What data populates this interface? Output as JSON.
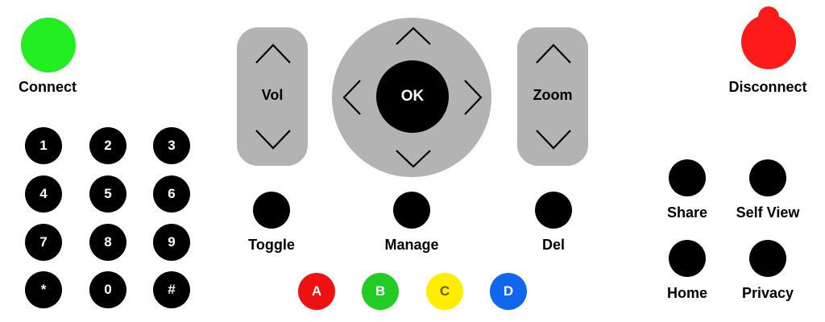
{
  "connect": {
    "label": "Connect",
    "color": "#22ee22"
  },
  "disconnect": {
    "label": "Disconnect",
    "color": "#ff1a1a"
  },
  "keypad": [
    "1",
    "2",
    "3",
    "4",
    "5",
    "6",
    "7",
    "8",
    "9",
    "*",
    "0",
    "#"
  ],
  "volume": {
    "label": "Vol"
  },
  "zoom": {
    "label": "Zoom"
  },
  "dpad": {
    "ok_label": "OK"
  },
  "actions": {
    "toggle": "Toggle",
    "manage": "Manage",
    "del": "Del"
  },
  "color_buttons": [
    {
      "label": "A",
      "color": "#ee1111"
    },
    {
      "label": "B",
      "color": "#22cc22"
    },
    {
      "label": "C",
      "color": "#ffee00"
    },
    {
      "label": "D",
      "color": "#1166ee"
    }
  ],
  "side": {
    "share": "Share",
    "self_view": "Self View",
    "home": "Home",
    "privacy": "Privacy"
  }
}
